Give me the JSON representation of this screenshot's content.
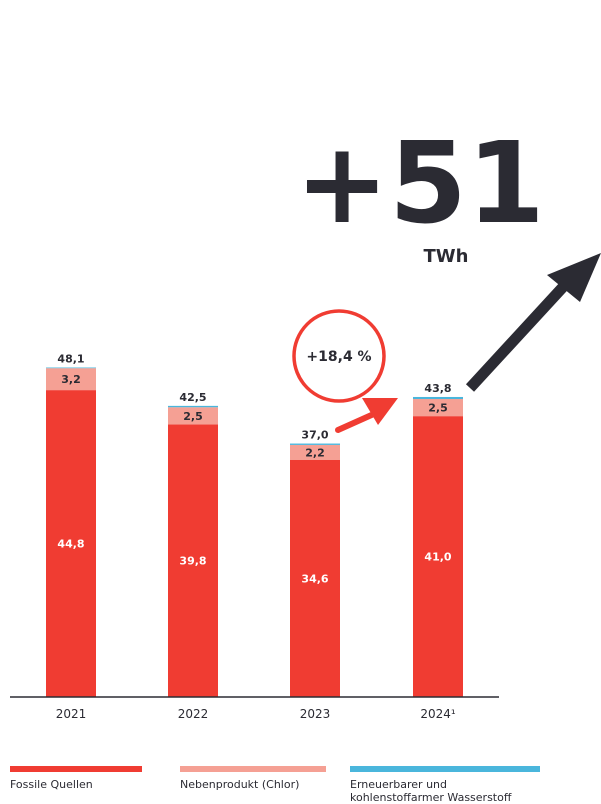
{
  "chart_data": {
    "type": "bar",
    "stacked": true,
    "categories": [
      "2021",
      "2022",
      "2023",
      "2024¹"
    ],
    "series": [
      {
        "name": "Fossile Quellen",
        "values": [
          44.8,
          39.8,
          34.6,
          41.0
        ],
        "labels": [
          "44,8",
          "39,8",
          "34,6",
          "41,0"
        ],
        "color": "#f03c32"
      },
      {
        "name": "Nebenprodukt (Chlor)",
        "values": [
          3.2,
          2.5,
          2.2,
          2.5
        ],
        "labels": [
          "3,2",
          "2,5",
          "2,2",
          "2,5"
        ],
        "color": "#f5a094"
      },
      {
        "name": "Erneuerbarer und kohlenstoffarmer Wasserstoff",
        "values": [
          0.1,
          0.2,
          0.2,
          0.3
        ],
        "color": "#4ab6dc"
      }
    ],
    "totals": [
      48.1,
      42.5,
      37.0,
      43.8
    ],
    "total_labels": [
      "48,1",
      "42,5",
      "37,0",
      "43,8"
    ],
    "ylim": [
      0,
      55
    ],
    "annotation_growth": "+18,4 %",
    "headline_value": "+51",
    "headline_unit": "TWh",
    "legend_position": "bottom",
    "grid": false,
    "colors": {
      "arrow_red": "#f03c32",
      "arrow_dark": "#2b2b33",
      "text": "#2b2b33"
    }
  }
}
